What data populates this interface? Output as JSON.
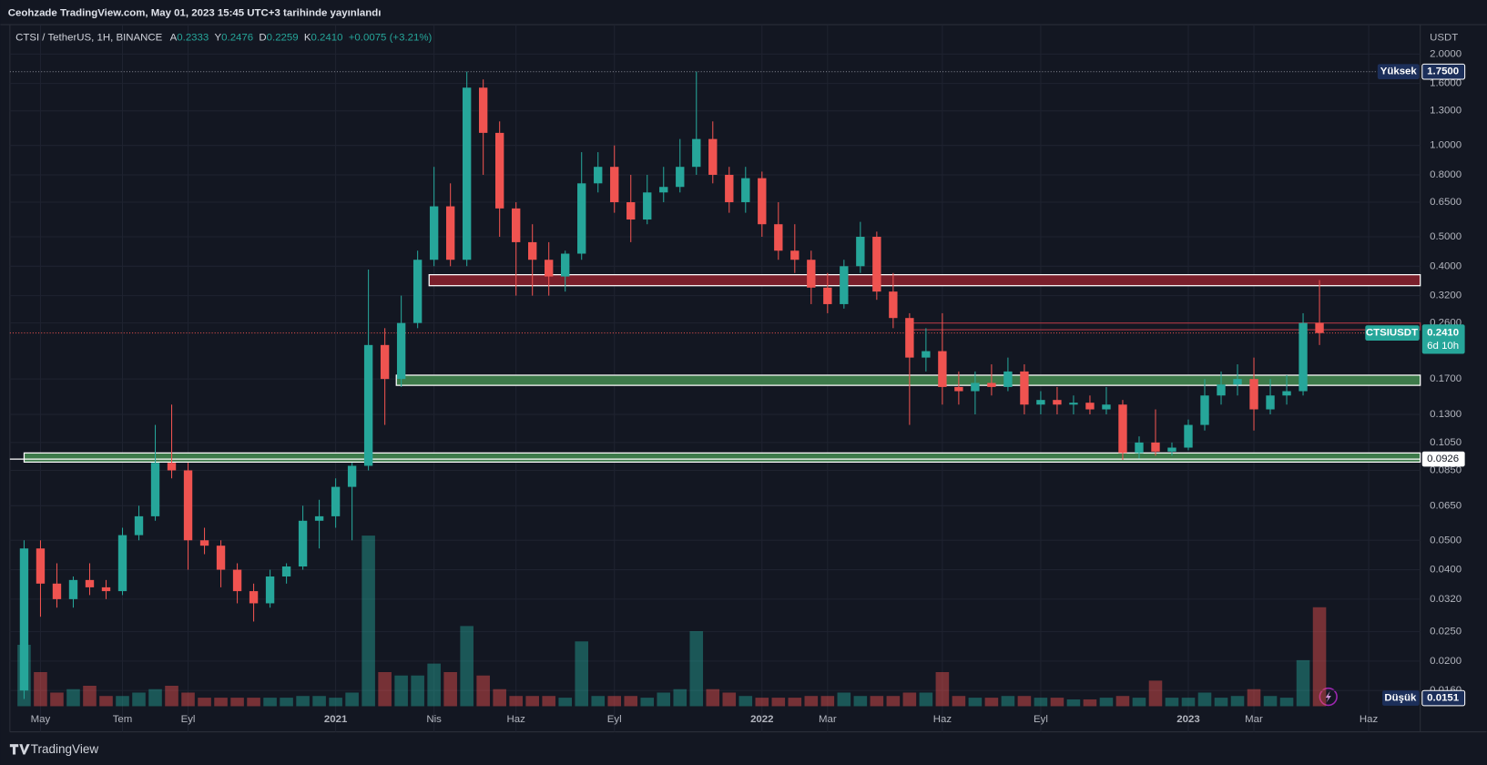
{
  "header": {
    "published": "Ceohzade TradingView.com, May 01, 2023 15:45 UTC+3 tarihinde yayınlandı"
  },
  "footer": {
    "brand": "TradingView"
  },
  "chart_data": {
    "type": "candlestick",
    "legend": {
      "symbol": "CTSI / TetherUS, 1H, BINANCE",
      "ohlc": [
        {
          "label": "A",
          "value": "0.2333"
        },
        {
          "label": "Y",
          "value": "0.2476"
        },
        {
          "label": "D",
          "value": "0.2259"
        },
        {
          "label": "K",
          "value": "0.2410"
        }
      ],
      "change": "+0.0075 (+3.21%)"
    },
    "y_unit": "USDT",
    "log_scale": true,
    "grid": true,
    "up_color": "#26a69a",
    "down_color": "#ef5350",
    "ylim": [
      0.0142,
      2.5
    ],
    "yticks": [
      {
        "value": 2,
        "label": "2.0000"
      },
      {
        "value": 1.6,
        "label": "1.6000"
      },
      {
        "value": 1.3,
        "label": "1.3000"
      },
      {
        "value": 1,
        "label": "1.0000"
      },
      {
        "value": 0.8,
        "label": "0.8000"
      },
      {
        "value": 0.65,
        "label": "0.6500"
      },
      {
        "value": 0.5,
        "label": "0.5000"
      },
      {
        "value": 0.4,
        "label": "0.4000"
      },
      {
        "value": 0.32,
        "label": "0.3200"
      },
      {
        "value": 0.26,
        "label": "0.2600"
      },
      {
        "value": 0.17,
        "label": "0.1700"
      },
      {
        "value": 0.13,
        "label": "0.1300"
      },
      {
        "value": 0.105,
        "label": "0.1050"
      },
      {
        "value": 0.085,
        "label": "0.0850"
      },
      {
        "value": 0.065,
        "label": "0.0650"
      },
      {
        "value": 0.05,
        "label": "0.0500"
      },
      {
        "value": 0.04,
        "label": "0.0400"
      },
      {
        "value": 0.032,
        "label": "0.0320"
      },
      {
        "value": 0.025,
        "label": "0.0250"
      },
      {
        "value": 0.02,
        "label": "0.0200"
      },
      {
        "value": 0.016,
        "label": "0.0160"
      }
    ],
    "categories": [
      null,
      "May",
      null,
      null,
      null,
      null,
      "Tem",
      null,
      null,
      null,
      "Eyl",
      null,
      null,
      null,
      null,
      null,
      null,
      null,
      null,
      "2021",
      null,
      null,
      null,
      null,
      null,
      "Nis",
      null,
      null,
      null,
      null,
      "Haz",
      null,
      null,
      null,
      null,
      null,
      "Eyl",
      null,
      null,
      null,
      null,
      null,
      null,
      null,
      null,
      "2022",
      null,
      null,
      null,
      "Mar",
      null,
      null,
      null,
      null,
      null,
      null,
      "Haz",
      null,
      null,
      null,
      null,
      null,
      "Eyl",
      null,
      null,
      null,
      null,
      null,
      null,
      null,
      null,
      "2023",
      null,
      null,
      null,
      "Mar",
      null,
      null,
      null,
      null,
      null,
      null,
      "Haz",
      null,
      null
    ],
    "open": [
      0.016,
      0.047,
      0.036,
      0.032,
      0.037,
      0.035,
      0.034,
      0.052,
      0.06,
      0.09,
      0.085,
      0.05,
      0.048,
      0.04,
      0.034,
      0.031,
      0.038,
      0.041,
      0.058,
      0.06,
      0.075,
      0.088,
      0.22,
      0.17,
      0.26,
      0.42,
      0.63,
      0.42,
      1.55,
      1.1,
      0.62,
      0.48,
      0.42,
      0.37,
      0.44,
      0.75,
      0.85,
      0.65,
      0.57,
      0.7,
      0.73,
      0.85,
      1.05,
      0.8,
      0.65,
      0.78,
      0.55,
      0.45,
      0.42,
      0.34,
      0.3,
      0.4,
      0.5,
      0.33,
      0.27,
      0.2,
      0.21,
      0.16,
      0.155,
      0.165,
      0.16,
      0.18,
      0.14,
      0.145,
      0.14,
      0.142,
      0.135,
      0.14,
      0.097,
      0.105,
      0.098,
      0.101,
      0.12,
      0.15,
      0.163,
      0.17,
      0.135,
      0.15,
      0.155,
      0.26,
      null,
      null,
      null,
      null,
      null
    ],
    "high": [
      0.05,
      0.05,
      0.042,
      0.038,
      0.042,
      0.037,
      0.055,
      0.065,
      0.12,
      0.14,
      0.09,
      0.055,
      0.05,
      0.042,
      0.036,
      0.04,
      0.042,
      0.065,
      0.068,
      0.08,
      0.09,
      0.39,
      0.25,
      0.32,
      0.45,
      0.85,
      0.75,
      1.75,
      1.65,
      1.2,
      0.65,
      0.55,
      0.48,
      0.45,
      0.95,
      0.95,
      1.0,
      0.8,
      0.8,
      0.85,
      1.05,
      1.75,
      1.2,
      0.85,
      0.85,
      0.82,
      0.65,
      0.55,
      0.45,
      0.38,
      0.42,
      0.56,
      0.52,
      0.38,
      0.28,
      0.25,
      0.28,
      0.18,
      0.18,
      0.19,
      0.2,
      0.19,
      0.155,
      0.16,
      0.15,
      0.15,
      0.16,
      0.145,
      0.11,
      0.135,
      0.105,
      0.125,
      0.17,
      0.18,
      0.19,
      0.2,
      0.17,
      0.175,
      0.28,
      0.36,
      null,
      null,
      null,
      null,
      null
    ],
    "low": [
      0.015,
      0.028,
      0.03,
      0.03,
      0.033,
      0.032,
      0.033,
      0.05,
      0.058,
      0.08,
      0.04,
      0.045,
      0.035,
      0.031,
      0.027,
      0.03,
      0.036,
      0.04,
      0.047,
      0.055,
      0.05,
      0.085,
      0.12,
      0.16,
      0.25,
      0.4,
      0.4,
      0.4,
      0.8,
      0.5,
      0.32,
      0.32,
      0.32,
      0.33,
      0.42,
      0.7,
      0.6,
      0.48,
      0.55,
      0.65,
      0.7,
      0.8,
      0.75,
      0.6,
      0.6,
      0.5,
      0.42,
      0.38,
      0.3,
      0.28,
      0.29,
      0.38,
      0.31,
      0.25,
      0.12,
      0.18,
      0.14,
      0.14,
      0.13,
      0.15,
      0.155,
      0.13,
      0.13,
      0.13,
      0.13,
      0.13,
      0.13,
      0.092,
      0.093,
      0.095,
      0.095,
      0.099,
      0.115,
      0.14,
      0.15,
      0.115,
      0.13,
      0.14,
      0.15,
      0.22,
      null,
      null,
      null,
      null,
      null
    ],
    "close": [
      0.047,
      0.036,
      0.032,
      0.037,
      0.035,
      0.034,
      0.052,
      0.06,
      0.09,
      0.085,
      0.05,
      0.048,
      0.04,
      0.034,
      0.031,
      0.038,
      0.041,
      0.058,
      0.06,
      0.075,
      0.088,
      0.22,
      0.17,
      0.26,
      0.42,
      0.63,
      0.42,
      1.55,
      1.1,
      0.62,
      0.48,
      0.42,
      0.37,
      0.44,
      0.75,
      0.85,
      0.65,
      0.57,
      0.7,
      0.73,
      0.85,
      1.05,
      0.8,
      0.65,
      0.78,
      0.55,
      0.45,
      0.42,
      0.34,
      0.3,
      0.4,
      0.5,
      0.33,
      0.27,
      0.2,
      0.21,
      0.16,
      0.155,
      0.165,
      0.16,
      0.18,
      0.14,
      0.145,
      0.14,
      0.142,
      0.135,
      0.14,
      0.097,
      0.105,
      0.098,
      0.101,
      0.12,
      0.15,
      0.163,
      0.17,
      0.135,
      0.15,
      0.155,
      0.26,
      0.241,
      null,
      null,
      null,
      null,
      null
    ],
    "volume": [
      36,
      20,
      8,
      10,
      12,
      6,
      6,
      8,
      10,
      12,
      8,
      5,
      5,
      5,
      5,
      5,
      5,
      6,
      6,
      5,
      8,
      100,
      20,
      18,
      18,
      25,
      20,
      47,
      18,
      10,
      6,
      6,
      6,
      5,
      38,
      6,
      6,
      6,
      5,
      8,
      10,
      44,
      10,
      8,
      6,
      5,
      5,
      5,
      6,
      6,
      8,
      6,
      6,
      6,
      8,
      8,
      20,
      6,
      5,
      5,
      6,
      6,
      5,
      5,
      4,
      4,
      5,
      6,
      5,
      15,
      5,
      5,
      8,
      5,
      6,
      10,
      6,
      5,
      27,
      58,
      null,
      null,
      null,
      null,
      null
    ],
    "volume_ylim": [
      0,
      100
    ],
    "zones": [
      {
        "low": 0.345,
        "high": 0.375,
        "from": 24.7,
        "fill": "#7a1f2b",
        "border": "#ffffff"
      },
      {
        "low": 0.162,
        "high": 0.175,
        "from": 22.7,
        "fill": "#3d7a4a",
        "border": "#ffffff"
      },
      {
        "low": 0.0905,
        "high": 0.097,
        "from": 0,
        "fill": "#3d7a4a",
        "border": "#ffffff"
      },
      {
        "low": 0.247,
        "high": 0.26,
        "from": 53.9,
        "fill": "none",
        "border": "#9c3540"
      }
    ],
    "level_line": {
      "value": 0.0926,
      "color": "#ffffff"
    },
    "price_line": {
      "value": 0.241,
      "label": "0.2410",
      "symbol": "CTSIUSDT",
      "countdown": "6d 10h",
      "color": "#26a69a"
    },
    "high_marker": {
      "label": "Yüksek",
      "value": 1.75,
      "value_label": "1.7500"
    },
    "low_marker": {
      "label": "Düşük",
      "value": 0.0151
    }
  }
}
